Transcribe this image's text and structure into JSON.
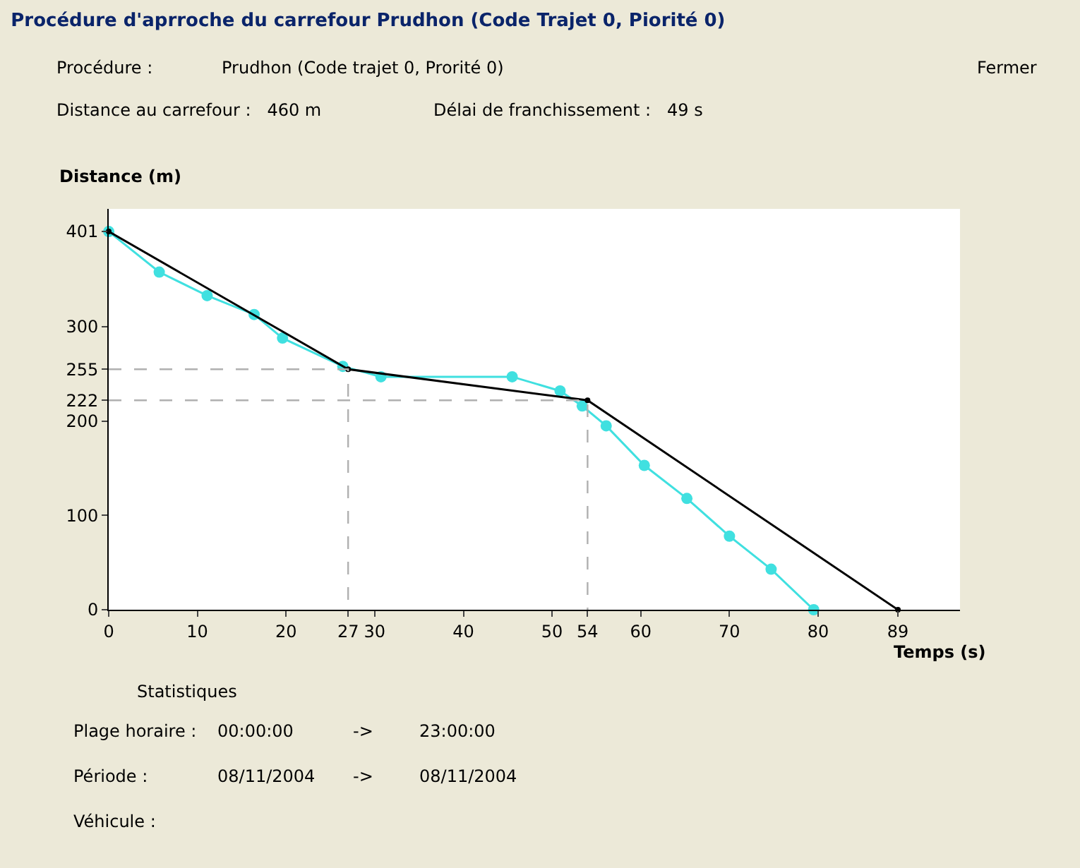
{
  "chart_data": {
    "type": "line",
    "title": "Procédure d'aprroche du carrefour Prudhon (Code Trajet 0, Piorité 0)",
    "xlabel": "Temps (s)",
    "ylabel": "Distance (m)",
    "xlim": [
      0,
      96
    ],
    "ylim": [
      0,
      425
    ],
    "xticks": [
      0,
      10,
      20,
      {
        "value": 27,
        "label": "27"
      },
      30,
      40,
      50,
      {
        "value": 54,
        "label": "54"
      },
      60,
      70,
      80,
      {
        "value": 89,
        "label": "89"
      }
    ],
    "yticks": [
      0,
      100,
      200,
      {
        "value": 222,
        "label": "222"
      },
      {
        "value": 255,
        "label": "255"
      },
      300,
      {
        "value": 401,
        "label": "401"
      }
    ],
    "series": [
      {
        "color": "#40e0e0",
        "marker": "circle",
        "line_style": "solid",
        "x": [
          0,
          5.7,
          11.1,
          16.4,
          19.6,
          26.4,
          30.7,
          45.5,
          50.9,
          53.4,
          56.1,
          60.4,
          65.2,
          70,
          74.7,
          79.5
        ],
        "values": [
          401,
          358,
          333,
          313,
          288,
          258,
          247,
          247,
          232,
          216,
          195,
          153,
          118,
          78,
          43,
          0
        ]
      },
      {
        "color": "#000000",
        "marker": "circle",
        "line_style": "solid",
        "x": [
          0,
          27,
          54,
          89
        ],
        "values": [
          401,
          255,
          222,
          0
        ]
      },
      {
        "color": "#b0b0b0",
        "marker": "none",
        "line_style": "dashed",
        "x": [
          0,
          27,
          27
        ],
        "values": [
          255,
          255,
          0
        ]
      },
      {
        "color": "#b0b0b0",
        "marker": "none",
        "line_style": "dashed",
        "x": [
          0,
          54,
          54
        ],
        "values": [
          222,
          222,
          0
        ]
      }
    ],
    "annotations": [
      "Procédure :",
      "Prudhon (Code trajet 0, Prorité 0)",
      "Fermer",
      "Distance au carrefour :   460 m",
      "Délai de franchissement :   49 s",
      "Statistiques",
      "Plage horaire :",
      "00:00:00",
      "->",
      "23:00:00",
      "Période :",
      "08/11/2004",
      "->",
      "08/11/2004",
      "Véhicule :"
    ]
  }
}
